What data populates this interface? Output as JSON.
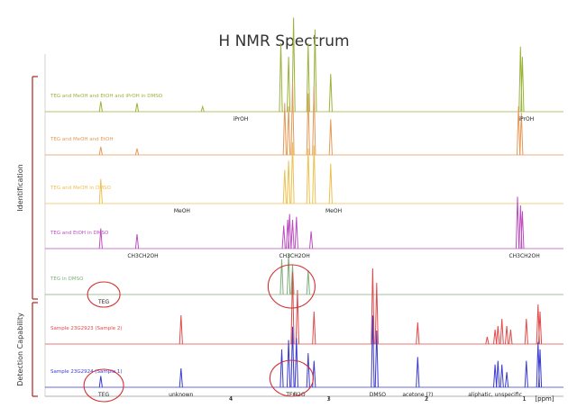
{
  "chart_data": {
    "type": "line",
    "title": "H NMR Spectrum",
    "xlabel": "[ppm]",
    "x_direction": "descending",
    "xlim": [
      5.9,
      0.6
    ],
    "x_ticks": [
      {
        "value": 4,
        "label": "4"
      },
      {
        "value": 3,
        "label": "3"
      },
      {
        "value": 2,
        "label": "2"
      },
      {
        "value": 1,
        "label": "1"
      }
    ],
    "groups": [
      {
        "label": "Identification",
        "color": "#b22222"
      },
      {
        "label": "Detection Capability",
        "color": "#b22222"
      }
    ],
    "series": [
      {
        "name": "TEG and MeOH and EtOH and iPrOH in DMSO",
        "color": "#9bb33a",
        "group": 0,
        "peaks": [
          [
            5.33,
            6
          ],
          [
            4.96,
            5
          ],
          [
            4.29,
            3
          ],
          [
            3.49,
            40
          ],
          [
            3.41,
            32
          ],
          [
            3.36,
            55
          ],
          [
            3.21,
            40
          ],
          [
            3.14,
            48
          ],
          [
            2.98,
            22
          ],
          [
            1.04,
            38
          ],
          [
            1.02,
            32
          ]
        ]
      },
      {
        "name": "TEG and MeOH and EtOH",
        "color": "#e39a58",
        "group": 0,
        "peaks": [
          [
            5.33,
            5
          ],
          [
            4.96,
            4
          ],
          [
            3.45,
            32
          ],
          [
            3.41,
            30
          ],
          [
            3.37,
            45
          ],
          [
            3.21,
            38
          ],
          [
            3.15,
            42
          ],
          [
            2.98,
            22
          ],
          [
            1.06,
            30
          ],
          [
            1.03,
            26
          ]
        ]
      },
      {
        "name": "TEG and MeOH in DMSO",
        "color": "#eec050",
        "group": 0,
        "peaks": [
          [
            5.33,
            16
          ],
          [
            3.45,
            22
          ],
          [
            3.41,
            28
          ],
          [
            3.37,
            40
          ],
          [
            3.21,
            36
          ],
          [
            3.15,
            38
          ],
          [
            2.98,
            26
          ]
        ]
      },
      {
        "name": "TEG and EtOH in DMSO",
        "color": "#bb4fbf",
        "group": 0,
        "peaks": [
          [
            5.33,
            14
          ],
          [
            4.96,
            10
          ],
          [
            3.46,
            16
          ],
          [
            3.42,
            20
          ],
          [
            3.4,
            24
          ],
          [
            3.37,
            20
          ],
          [
            3.33,
            22
          ],
          [
            3.18,
            12
          ],
          [
            1.07,
            36
          ],
          [
            1.04,
            30
          ],
          [
            1.02,
            26
          ]
        ]
      },
      {
        "name": "TEG in DMSO",
        "color": "#7fae7c",
        "group": 0,
        "peaks": [
          [
            3.48,
            26
          ],
          [
            3.41,
            30
          ],
          [
            3.37,
            22
          ],
          [
            3.21,
            18
          ]
        ]
      },
      {
        "name": "Sample 23G2923 (Sample 2)",
        "color": "#e04a4a",
        "group": 1,
        "peaks": [
          [
            4.51,
            16
          ],
          [
            3.37,
            40
          ],
          [
            3.32,
            30
          ],
          [
            3.15,
            18
          ],
          [
            2.55,
            42
          ],
          [
            2.51,
            34
          ],
          [
            2.09,
            12
          ],
          [
            1.38,
            4
          ],
          [
            1.3,
            8
          ],
          [
            1.27,
            10
          ],
          [
            1.23,
            14
          ],
          [
            1.18,
            10
          ],
          [
            1.14,
            8
          ],
          [
            0.98,
            14
          ],
          [
            0.86,
            22
          ],
          [
            0.84,
            18
          ]
        ]
      },
      {
        "name": "Sample 23G2924 (Sample 1)",
        "color": "#3a3ad0",
        "group": 1,
        "peaks": [
          [
            5.33,
            6
          ],
          [
            4.51,
            10
          ],
          [
            3.48,
            20
          ],
          [
            3.41,
            25
          ],
          [
            3.37,
            32
          ],
          [
            3.33,
            26
          ],
          [
            3.21,
            18
          ],
          [
            3.15,
            14
          ],
          [
            2.55,
            38
          ],
          [
            2.51,
            30
          ],
          [
            2.09,
            16
          ],
          [
            1.3,
            12
          ],
          [
            1.27,
            14
          ],
          [
            1.23,
            12
          ],
          [
            1.18,
            8
          ],
          [
            0.98,
            14
          ],
          [
            0.86,
            24
          ],
          [
            0.84,
            20
          ]
        ]
      }
    ],
    "peak_labels": [
      {
        "text": "iPrOH",
        "x": 3.9,
        "series": 0
      },
      {
        "text": "iPrOH",
        "x": 0.98,
        "series": 0
      },
      {
        "text": "MeOH",
        "x": 4.5,
        "series": 2
      },
      {
        "text": "MeOH",
        "x": 2.95,
        "series": 2
      },
      {
        "text": "CH3CH2OH",
        "x": 4.9,
        "series": 3
      },
      {
        "text": "CH3CH2OH",
        "x": 3.35,
        "series": 3
      },
      {
        "text": "CH3CH2OH",
        "x": 1.0,
        "series": 3
      },
      {
        "text": "TEG",
        "x": 5.3,
        "series": 4
      },
      {
        "text": "TEG",
        "x": 5.3,
        "series": 6
      },
      {
        "text": "unknown",
        "x": 4.51,
        "series": 6
      },
      {
        "text": "TEG",
        "x": 3.38,
        "series": 6
      },
      {
        "text": "H2O",
        "x": 3.3,
        "series": 6
      },
      {
        "text": "DMSO",
        "x": 2.5,
        "series": 6
      },
      {
        "text": "acetone (?)",
        "x": 2.09,
        "series": 6
      },
      {
        "text": "aliphatic, unspecific",
        "x": 1.3,
        "series": 6
      }
    ]
  }
}
